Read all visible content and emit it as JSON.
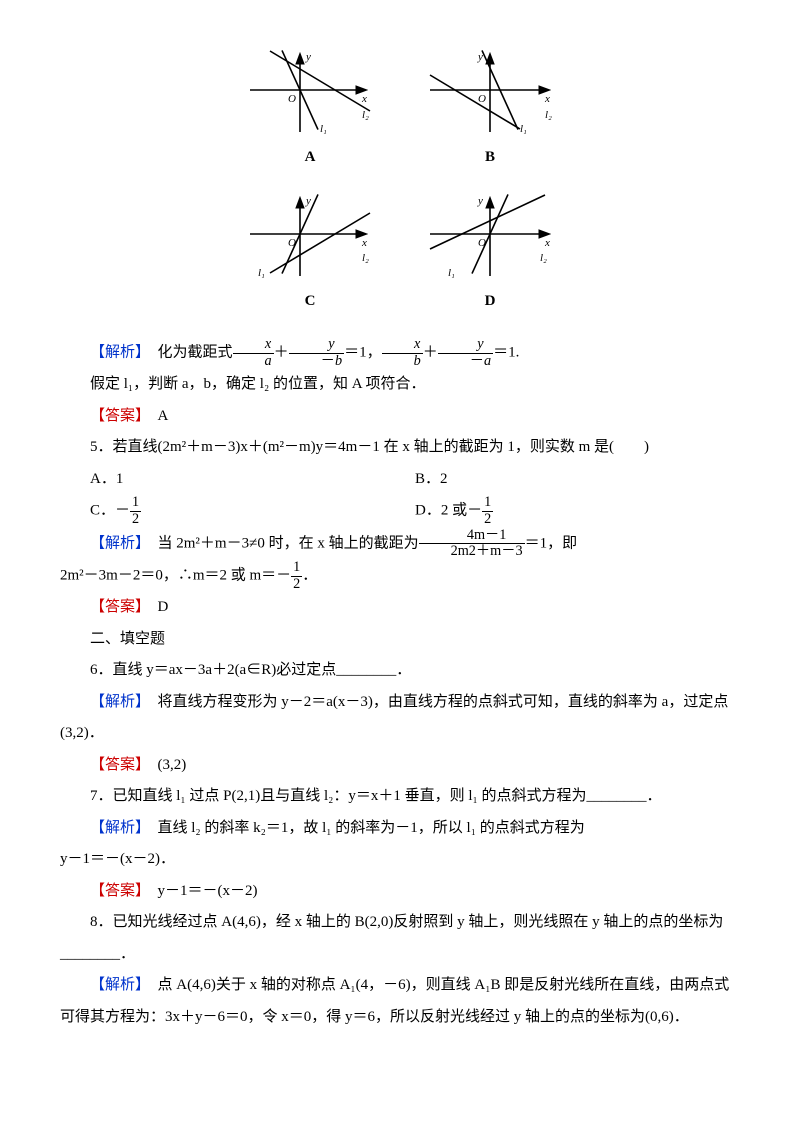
{
  "diagrams": {
    "A": "A",
    "B": "B",
    "C": "C",
    "D": "D",
    "axis_x": "x",
    "axis_y": "y",
    "origin": "O",
    "l1": "l₁",
    "l2": "l₂",
    "stroke": "#000000",
    "lineWidth": 1.6,
    "AB_l1_slope": -2.2,
    "AB_l2_slope": -0.6,
    "A_l1_xint": 0,
    "A_l2_xint": 35,
    "B_l1_xint": 10,
    "B_l2_xint": -35,
    "CD_l1_slope": 2.2,
    "CD_l2_slope": 0.6,
    "C_l1_xint": 0,
    "C_l2_xint": 35,
    "D_l1_xint": 0,
    "D_l2_xint": -35
  },
  "p_analysis1": "【解析】　化为截距式",
  "p_analysis1_b": "＝1，",
  "p_analysis1_c": "＝1.",
  "p2": "假定 l₁，判断 a，b，确定 l₂ 的位置，知 A 项符合．",
  "ans_label": "【答案】",
  "ans4": "　A",
  "q5": "5．若直线(2m²＋m－3)x＋(m²－m)y＝4m－1 在 x 轴上的截距为 1，则实数 m 是(　　)",
  "q5_A": "A．1",
  "q5_B": "B．2",
  "q5_C": "C．－",
  "q5_C_num": "1",
  "q5_C_den": "2",
  "q5_D": "D．2 或－",
  "q5_D_num": "1",
  "q5_D_den": "2",
  "a5_pre": "【解析】　当 2m²＋m－3≠0 时，在 x 轴上的截距为",
  "a5_frac_num": "4m－1",
  "a5_frac_den": "2m2＋m－3",
  "a5_post": "＝1，即",
  "a5_line2_a": "2m²－3m－2＝0，∴m＝2 或 m＝－",
  "a5_line2_num": "1",
  "a5_line2_den": "2",
  "a5_line2_b": "．",
  "ans5": "　D",
  "section2": "二、填空题",
  "q6": "6．直线 y＝ax－3a＋2(a∈R)必过定点________．",
  "a6": "【解析】　将直线方程变形为 y－2＝a(x－3)，由直线方程的点斜式可知，直线的斜率为 a，过定点(3,2)．",
  "ans6": "　(3,2)",
  "q7": "7．已知直线 l₁ 过点 P(2,1)且与直线 l₂：y＝x＋1 垂直，则 l₁ 的点斜式方程为________．",
  "a7a": "【解析】　直线 l₂ 的斜率 k₂＝1，故 l₁ 的斜率为－1，所以 l₁ 的点斜式方程为",
  "a7b": "y－1＝－(x－2)．",
  "ans7": "　y－1＝－(x－2)",
  "q8a": "8．已知光线经过点 A(4,6)，经 x 轴上的 B(2,0)反射照到 y 轴上，则光线照在 y 轴上的点的坐标为________．",
  "a8a": "【解析】　点 A(4,6)关于 x 轴的对称点 A₁(4，－6)，则直线 A₁B 即是反射光线所在直线，由两点式可得其方程为：3x＋y－6＝0，令 x＝0，得 y＝6，所以反射光线经过 y 轴上的点的坐标为(0,6)．"
}
